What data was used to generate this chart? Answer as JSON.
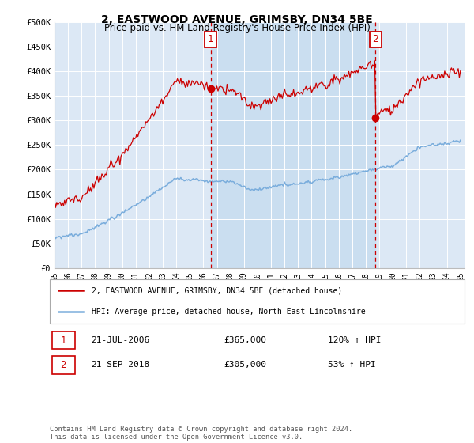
{
  "title": "2, EASTWOOD AVENUE, GRIMSBY, DN34 5BE",
  "subtitle": "Price paid vs. HM Land Registry's House Price Index (HPI)",
  "background_color": "#ffffff",
  "plot_bg": "#dce8f5",
  "red_color": "#cc0000",
  "blue_color": "#7aaddc",
  "highlight_color": "#c8ddf0",
  "ylim": [
    0,
    500000
  ],
  "yticks": [
    0,
    50000,
    100000,
    150000,
    200000,
    250000,
    300000,
    350000,
    400000,
    450000,
    500000
  ],
  "ytick_labels": [
    "£0",
    "£50K",
    "£100K",
    "£150K",
    "£200K",
    "£250K",
    "£300K",
    "£350K",
    "£400K",
    "£450K",
    "£500K"
  ],
  "sale1_date_x": 2006.55,
  "sale1_price": 365000,
  "sale2_date_x": 2018.72,
  "sale2_price": 305000,
  "legend_line1": "2, EASTWOOD AVENUE, GRIMSBY, DN34 5BE (detached house)",
  "legend_line2": "HPI: Average price, detached house, North East Lincolnshire",
  "annot1_label": "1",
  "annot2_label": "2",
  "annot1_text": "21-JUL-2006",
  "annot1_price": "£365,000",
  "annot1_hpi": "120% ↑ HPI",
  "annot2_text": "21-SEP-2018",
  "annot2_price": "£305,000",
  "annot2_hpi": "53% ↑ HPI",
  "footnote": "Contains HM Land Registry data © Crown copyright and database right 2024.\nThis data is licensed under the Open Government Licence v3.0.",
  "xmin": 1995.0,
  "xmax": 2025.3
}
